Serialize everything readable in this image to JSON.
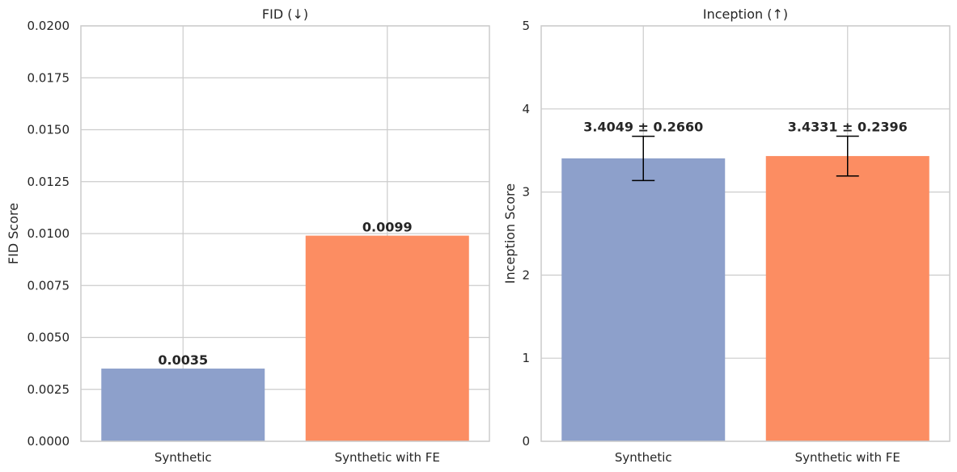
{
  "chart_data": [
    {
      "type": "bar",
      "title": "FID  (↓)",
      "xlabel": "",
      "ylabel": "FID Score",
      "ylim": [
        0,
        0.02
      ],
      "yticks": [
        0,
        0.0025,
        0.005,
        0.0075,
        0.01,
        0.0125,
        0.015,
        0.0175,
        0.02
      ],
      "ytick_labels": [
        "0.0000",
        "0.0025",
        "0.0050",
        "0.0075",
        "0.0100",
        "0.0125",
        "0.0150",
        "0.0175",
        "0.0200"
      ],
      "categories": [
        "Synthetic",
        "Synthetic with FE"
      ],
      "values": [
        0.0035,
        0.0099
      ],
      "value_labels": [
        "0.0035",
        "0.0099"
      ],
      "colors": [
        "#8da0cb",
        "#fc8d62"
      ],
      "grid": true,
      "legend": "none"
    },
    {
      "type": "bar",
      "title": "Inception (↑)",
      "xlabel": "",
      "ylabel": "Inception Score",
      "ylim": [
        0,
        5
      ],
      "yticks": [
        0,
        1,
        2,
        3,
        4,
        5
      ],
      "ytick_labels": [
        "0",
        "1",
        "2",
        "3",
        "4",
        "5"
      ],
      "categories": [
        "Synthetic",
        "Synthetic with FE"
      ],
      "values": [
        3.4049,
        3.4331
      ],
      "errors": [
        0.266,
        0.2396
      ],
      "value_labels": [
        "3.4049 ± 0.2660",
        "3.4331 ± 0.2396"
      ],
      "colors": [
        "#8da0cb",
        "#fc8d62"
      ],
      "grid": true,
      "legend": "none"
    }
  ]
}
